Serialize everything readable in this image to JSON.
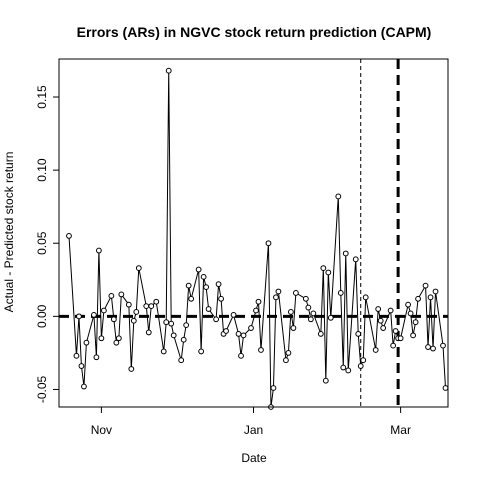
{
  "chart_data": {
    "type": "line",
    "title": "Errors (ARs) in NGVC stock return prediction (CAPM)",
    "xlabel": "Date",
    "ylabel": "Actual - Predicted stock return",
    "x_axis": {
      "start": "2018-10-15",
      "end": "2019-03-20",
      "ticks": [
        {
          "date": "2018-11-01",
          "label": "Nov"
        },
        {
          "date": "2019-01-01",
          "label": "Jan"
        },
        {
          "date": "2019-03-01",
          "label": "Mar"
        }
      ]
    },
    "y_axis": {
      "range": [
        -0.062,
        0.176
      ],
      "ticks": [
        -0.05,
        0.0,
        0.05,
        0.1,
        0.15
      ],
      "tick_labels": [
        "-0.05",
        "0.00",
        "0.05",
        "0.10",
        "0.15"
      ]
    },
    "reference_lines": [
      {
        "kind": "horizontal",
        "value": 0.0,
        "style": "thick-dashed"
      },
      {
        "kind": "vertical",
        "date": "2019-02-13",
        "style": "thin-dashed"
      },
      {
        "kind": "vertical",
        "date": "2019-02-28",
        "style": "thick-dashed"
      }
    ],
    "grid": false,
    "series": [
      {
        "points": [
          [
            "2018-10-19",
            0.055
          ],
          [
            "2018-10-22",
            -0.027
          ],
          [
            "2018-10-23",
            0.0
          ],
          [
            "2018-10-24",
            -0.034
          ],
          [
            "2018-10-25",
            -0.048
          ],
          [
            "2018-10-26",
            -0.018
          ],
          [
            "2018-10-29",
            0.001
          ],
          [
            "2018-10-30",
            -0.028
          ],
          [
            "2018-10-31",
            0.045
          ],
          [
            "2018-11-01",
            -0.015
          ],
          [
            "2018-11-02",
            0.004
          ],
          [
            "2018-11-05",
            0.014
          ],
          [
            "2018-11-06",
            -0.002
          ],
          [
            "2018-11-07",
            -0.018
          ],
          [
            "2018-11-08",
            -0.015
          ],
          [
            "2018-11-09",
            0.015
          ],
          [
            "2018-11-12",
            0.008
          ],
          [
            "2018-11-13",
            -0.036
          ],
          [
            "2018-11-14",
            -0.003
          ],
          [
            "2018-11-15",
            0.003
          ],
          [
            "2018-11-16",
            0.033
          ],
          [
            "2018-11-19",
            0.007
          ],
          [
            "2018-11-20",
            -0.011
          ],
          [
            "2018-11-21",
            0.007
          ],
          [
            "2018-11-23",
            0.01
          ],
          [
            "2018-11-26",
            -0.024
          ],
          [
            "2018-11-27",
            -0.004
          ],
          [
            "2018-11-28",
            0.168
          ],
          [
            "2018-11-29",
            -0.005
          ],
          [
            "2018-11-30",
            -0.013
          ],
          [
            "2018-12-03",
            -0.03
          ],
          [
            "2018-12-04",
            -0.016
          ],
          [
            "2018-12-05",
            -0.006
          ],
          [
            "2018-12-06",
            0.021
          ],
          [
            "2018-12-07",
            0.012
          ],
          [
            "2018-12-10",
            0.032
          ],
          [
            "2018-12-11",
            -0.024
          ],
          [
            "2018-12-12",
            0.027
          ],
          [
            "2018-12-13",
            0.02
          ],
          [
            "2018-12-14",
            0.005
          ],
          [
            "2018-12-17",
            -0.002
          ],
          [
            "2018-12-18",
            0.022
          ],
          [
            "2018-12-19",
            0.012
          ],
          [
            "2018-12-20",
            -0.012
          ],
          [
            "2018-12-21",
            -0.01
          ],
          [
            "2018-12-24",
            0.001
          ],
          [
            "2018-12-26",
            -0.012
          ],
          [
            "2018-12-27",
            -0.027
          ],
          [
            "2018-12-28",
            -0.013
          ],
          [
            "2018-12-31",
            -0.008
          ],
          [
            "2019-01-02",
            0.004
          ],
          [
            "2019-01-03",
            0.01
          ],
          [
            "2019-01-04",
            -0.023
          ],
          [
            "2019-01-07",
            0.05
          ],
          [
            "2019-01-08",
            -0.062
          ],
          [
            "2019-01-09",
            -0.049
          ],
          [
            "2019-01-10",
            0.013
          ],
          [
            "2019-01-11",
            0.017
          ],
          [
            "2019-01-14",
            -0.03
          ],
          [
            "2019-01-15",
            -0.025
          ],
          [
            "2019-01-16",
            0.003
          ],
          [
            "2019-01-17",
            -0.008
          ],
          [
            "2019-01-18",
            0.016
          ],
          [
            "2019-01-22",
            0.012
          ],
          [
            "2019-01-23",
            0.006
          ],
          [
            "2019-01-24",
            -0.002
          ],
          [
            "2019-01-25",
            0.002
          ],
          [
            "2019-01-28",
            -0.012
          ],
          [
            "2019-01-29",
            0.033
          ],
          [
            "2019-01-30",
            -0.044
          ],
          [
            "2019-01-31",
            0.03
          ],
          [
            "2019-02-01",
            -0.001
          ],
          [
            "2019-02-04",
            0.082
          ],
          [
            "2019-02-05",
            0.016
          ],
          [
            "2019-02-06",
            -0.035
          ],
          [
            "2019-02-07",
            0.043
          ],
          [
            "2019-02-08",
            -0.037
          ],
          [
            "2019-02-11",
            0.039
          ],
          [
            "2019-02-12",
            -0.012
          ],
          [
            "2019-02-13",
            -0.034
          ],
          [
            "2019-02-14",
            -0.03
          ],
          [
            "2019-02-15",
            0.013
          ],
          [
            "2019-02-19",
            -0.023
          ],
          [
            "2019-02-20",
            0.005
          ],
          [
            "2019-02-21",
            -0.003
          ],
          [
            "2019-02-22",
            -0.008
          ],
          [
            "2019-02-25",
            0.004
          ],
          [
            "2019-02-26",
            -0.02
          ],
          [
            "2019-02-27",
            -0.01
          ],
          [
            "2019-02-28",
            -0.015
          ],
          [
            "2019-03-01",
            -0.015
          ],
          [
            "2019-03-04",
            0.008
          ],
          [
            "2019-03-05",
            0.002
          ],
          [
            "2019-03-06",
            -0.013
          ],
          [
            "2019-03-07",
            -0.004
          ],
          [
            "2019-03-08",
            0.012
          ],
          [
            "2019-03-11",
            0.021
          ],
          [
            "2019-03-12",
            -0.021
          ],
          [
            "2019-03-13",
            0.013
          ],
          [
            "2019-03-14",
            -0.022
          ],
          [
            "2019-03-15",
            0.017
          ],
          [
            "2019-03-18",
            -0.02
          ],
          [
            "2019-03-19",
            -0.049
          ]
        ]
      }
    ]
  }
}
